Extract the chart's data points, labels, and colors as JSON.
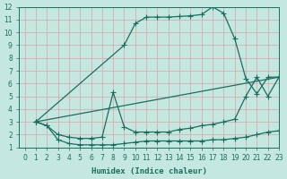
{
  "xlabel": "Humidex (Indice chaleur)",
  "xlim": [
    -0.5,
    23
  ],
  "ylim": [
    1,
    12
  ],
  "xticks": [
    0,
    1,
    2,
    3,
    4,
    5,
    6,
    7,
    8,
    9,
    10,
    11,
    12,
    13,
    14,
    15,
    16,
    17,
    18,
    19,
    20,
    21,
    22,
    23
  ],
  "yticks": [
    1,
    2,
    3,
    4,
    5,
    6,
    7,
    8,
    9,
    10,
    11,
    12
  ],
  "bg_color": "#c4e8e0",
  "grid_color": "#dfa0a8",
  "line_color": "#1a6e60",
  "lines": [
    {
      "x": [
        1,
        9,
        10,
        11,
        12,
        13,
        14,
        15,
        16,
        17,
        18,
        19,
        20,
        21,
        22,
        23
      ],
      "y": [
        3.0,
        9.0,
        10.7,
        11.2,
        11.2,
        11.2,
        11.25,
        11.3,
        11.4,
        12.0,
        11.5,
        9.5,
        6.4,
        5.2,
        6.5,
        6.5
      ]
    },
    {
      "x": [
        1,
        23
      ],
      "y": [
        3.0,
        6.5
      ]
    },
    {
      "x": [
        1,
        2,
        3,
        4,
        5,
        6,
        7,
        8,
        9,
        10,
        11,
        12,
        13,
        14,
        15,
        16,
        17,
        18,
        19,
        20,
        21,
        22,
        23
      ],
      "y": [
        3.0,
        2.7,
        2.0,
        1.8,
        1.7,
        1.7,
        1.8,
        5.3,
        2.6,
        2.2,
        2.2,
        2.2,
        2.2,
        2.4,
        2.5,
        2.7,
        2.8,
        3.0,
        3.2,
        5.0,
        6.5,
        5.0,
        6.5
      ]
    },
    {
      "x": [
        1,
        2,
        3,
        4,
        5,
        6,
        7,
        8,
        9,
        10,
        11,
        12,
        13,
        14,
        15,
        16,
        17,
        18,
        19,
        20,
        21,
        22,
        23
      ],
      "y": [
        3.0,
        2.7,
        1.6,
        1.3,
        1.2,
        1.2,
        1.2,
        1.2,
        1.3,
        1.4,
        1.5,
        1.5,
        1.5,
        1.5,
        1.5,
        1.5,
        1.6,
        1.6,
        1.7,
        1.8,
        2.0,
        2.2,
        2.3
      ]
    }
  ]
}
